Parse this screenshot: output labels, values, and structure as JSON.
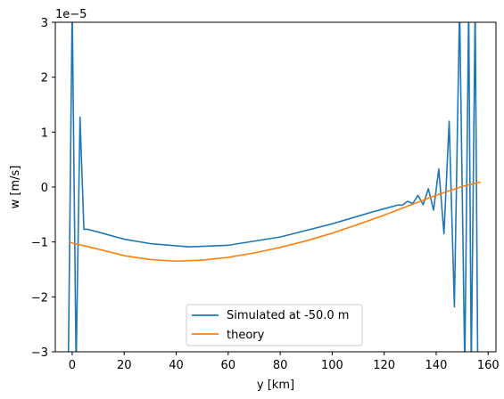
{
  "chart_data": {
    "type": "line",
    "title": "",
    "xlabel": "y [km]",
    "ylabel": "w [m/s]",
    "y_offset_text": "1e−5",
    "xlim": [
      -6.5,
      163
    ],
    "ylim": [
      -3,
      3
    ],
    "x_ticks": [
      0,
      20,
      40,
      60,
      80,
      100,
      120,
      140,
      160
    ],
    "y_ticks": [
      -3,
      -2,
      -1,
      0,
      1,
      2,
      3
    ],
    "legend_position": "lower-center",
    "grid": false,
    "series": [
      {
        "name": "Simulated at -50.0 m",
        "color": "#1f77b4",
        "x": [
          -1.5,
          0,
          1.5,
          3,
          4.5,
          6,
          10,
          20,
          30,
          45,
          60,
          80,
          100,
          115,
          122,
          125,
          127,
          129,
          131,
          133,
          135,
          137,
          139,
          141,
          143,
          145,
          147,
          149,
          151,
          152.5,
          153.5,
          155,
          156
        ],
        "y": [
          -3.3,
          3.3,
          -3.3,
          1.27,
          -0.77,
          -0.77,
          -0.82,
          -0.95,
          -1.03,
          -1.09,
          -1.06,
          -0.91,
          -0.67,
          -0.46,
          -0.37,
          -0.33,
          -0.33,
          -0.26,
          -0.3,
          -0.15,
          -0.32,
          -0.03,
          -0.42,
          0.33,
          -0.85,
          1.2,
          -2.18,
          3.3,
          -3.3,
          3.3,
          -3.3,
          3.3,
          -3.3
        ]
      },
      {
        "name": "theory",
        "color": "#ff7f0e",
        "x": [
          -1,
          0,
          10,
          20,
          30,
          40,
          50,
          60,
          70,
          80,
          90,
          100,
          110,
          120,
          130,
          140,
          150,
          157
        ],
        "y": [
          -1.0,
          -1.02,
          -1.13,
          -1.25,
          -1.32,
          -1.35,
          -1.33,
          -1.28,
          -1.2,
          -1.1,
          -0.98,
          -0.84,
          -0.68,
          -0.51,
          -0.33,
          -0.15,
          0.01,
          0.09
        ]
      }
    ]
  }
}
